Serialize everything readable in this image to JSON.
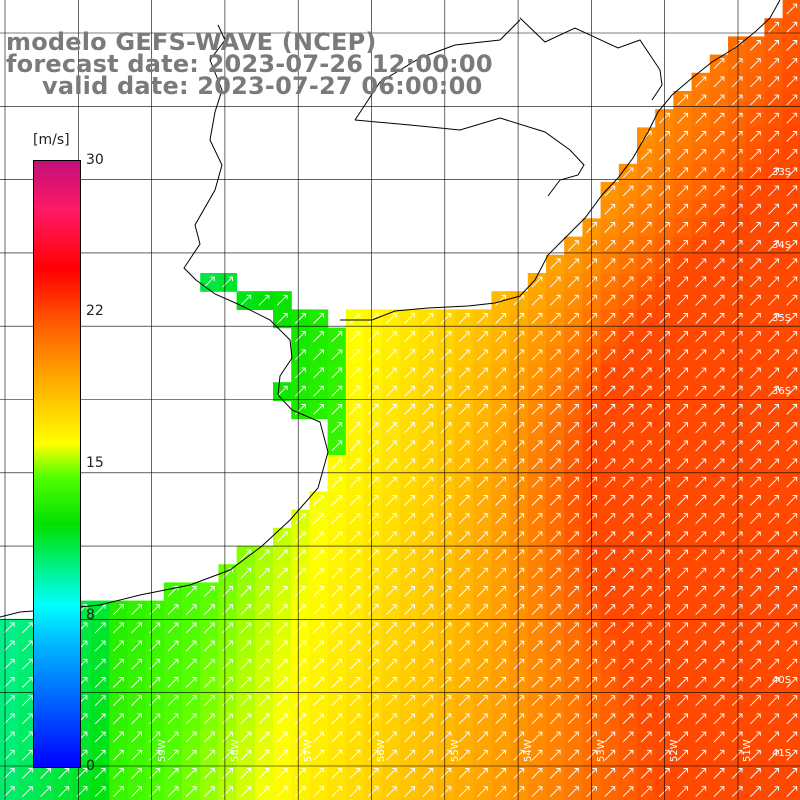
{
  "title": {
    "line1": "modelo GEFS-WAVE (NCEP)",
    "line2": "forecast date: 2023-07-26 12:00:00",
    "line3": "valid date: 2023-07-27 06:00:00"
  },
  "colorbar": {
    "unit": "[m/s]",
    "min": 0,
    "max": 30,
    "ticks": [
      30,
      22,
      15,
      8,
      0
    ],
    "tick_labels": [
      "30",
      "22",
      "15",
      "8",
      "0"
    ]
  },
  "map": {
    "lat_labels": [
      "33S",
      "34S",
      "35S",
      "36S",
      "40S",
      "41S"
    ],
    "lon_labels": [
      "59W",
      "58W",
      "57W",
      "56W",
      "55W",
      "54W",
      "53W",
      "52W",
      "51W"
    ],
    "field": "wind speed with direction arrows",
    "arrow_direction": "toward NE",
    "colors": {
      "land": "#ffffff",
      "coast": "#000000",
      "grid": "#000000",
      "arrow": "#ffffff",
      "title_text": "#7a7a7a"
    }
  }
}
